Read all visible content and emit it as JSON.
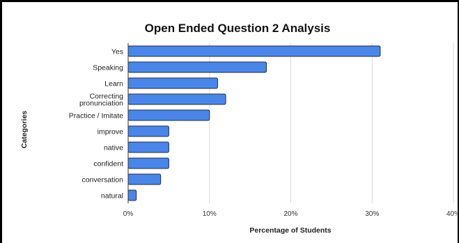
{
  "chart_data": {
    "type": "bar",
    "orientation": "horizontal",
    "title": "Open Ended Question 2 Analysis",
    "xlabel": "Percentage of Students",
    "ylabel": "Categories",
    "categories": [
      "Yes",
      "Speaking",
      "Learn",
      "Correcting pronunciation",
      "Practice / Imitate",
      "improve",
      "native",
      "confident",
      "conversation",
      "natural"
    ],
    "category_lines": [
      [
        "Yes"
      ],
      [
        "Speaking"
      ],
      [
        "Learn"
      ],
      [
        "Correcting",
        "pronunciation"
      ],
      [
        "Practice / Imitate"
      ],
      [
        "improve"
      ],
      [
        "native"
      ],
      [
        "confident"
      ],
      [
        "conversation"
      ],
      [
        "natural"
      ]
    ],
    "values": [
      31,
      17,
      11,
      12,
      10,
      5,
      5,
      5,
      4,
      1
    ],
    "value_unit": "%",
    "xlim": [
      0,
      40
    ],
    "xticks": [
      0,
      10,
      20,
      30,
      40
    ],
    "xtick_labels": [
      "0%",
      "10%",
      "20%",
      "30%",
      "40%"
    ],
    "bar_color": "#4a86e8",
    "grid": true,
    "legend": "none"
  }
}
